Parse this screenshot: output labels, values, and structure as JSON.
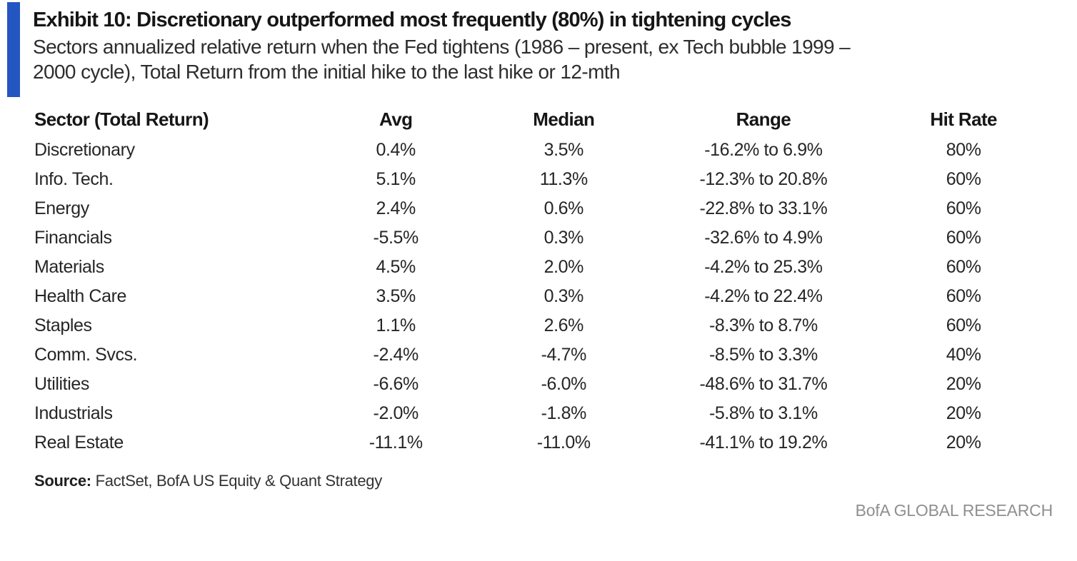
{
  "accent_color": "#2456c2",
  "header": {
    "exhibit_title": "Exhibit 10: Discretionary outperformed most frequently (80%) in tightening cycles",
    "subtitle_line1": "Sectors annualized relative return when the Fed tightens (1986 – present, ex Tech bubble 1999 –",
    "subtitle_line2": "2000 cycle), Total Return from the initial hike to the last hike or 12-mth"
  },
  "table": {
    "columns": [
      "Sector (Total Return)",
      "Avg",
      "Median",
      "Range",
      "Hit Rate"
    ],
    "rows": [
      {
        "sector": "Discretionary",
        "avg": "0.4%",
        "median": "3.5%",
        "range": "-16.2% to 6.9%",
        "hit_rate": "80%"
      },
      {
        "sector": "Info. Tech.",
        "avg": "5.1%",
        "median": "11.3%",
        "range": "-12.3% to 20.8%",
        "hit_rate": "60%"
      },
      {
        "sector": "Energy",
        "avg": "2.4%",
        "median": "0.6%",
        "range": "-22.8% to 33.1%",
        "hit_rate": "60%"
      },
      {
        "sector": "Financials",
        "avg": "-5.5%",
        "median": "0.3%",
        "range": "-32.6% to 4.9%",
        "hit_rate": "60%"
      },
      {
        "sector": "Materials",
        "avg": "4.5%",
        "median": "2.0%",
        "range": "-4.2% to 25.3%",
        "hit_rate": "60%"
      },
      {
        "sector": "Health Care",
        "avg": "3.5%",
        "median": "0.3%",
        "range": "-4.2% to 22.4%",
        "hit_rate": "60%"
      },
      {
        "sector": "Staples",
        "avg": "1.1%",
        "median": "2.6%",
        "range": "-8.3% to 8.7%",
        "hit_rate": "60%"
      },
      {
        "sector": "Comm. Svcs.",
        "avg": "-2.4%",
        "median": "-4.7%",
        "range": "-8.5% to 3.3%",
        "hit_rate": "40%"
      },
      {
        "sector": "Utilities",
        "avg": "-6.6%",
        "median": "-6.0%",
        "range": "-48.6% to 31.7%",
        "hit_rate": "20%"
      },
      {
        "sector": "Industrials",
        "avg": "-2.0%",
        "median": "-1.8%",
        "range": "-5.8% to 3.1%",
        "hit_rate": "20%"
      },
      {
        "sector": "Real Estate",
        "avg": "-11.1%",
        "median": "-11.0%",
        "range": "-41.1% to 19.2%",
        "hit_rate": "20%"
      }
    ]
  },
  "footer": {
    "source_label": "Source:",
    "source_text": " FactSet, BofA US Equity & Quant Strategy",
    "brand": "BofA GLOBAL RESEARCH"
  }
}
